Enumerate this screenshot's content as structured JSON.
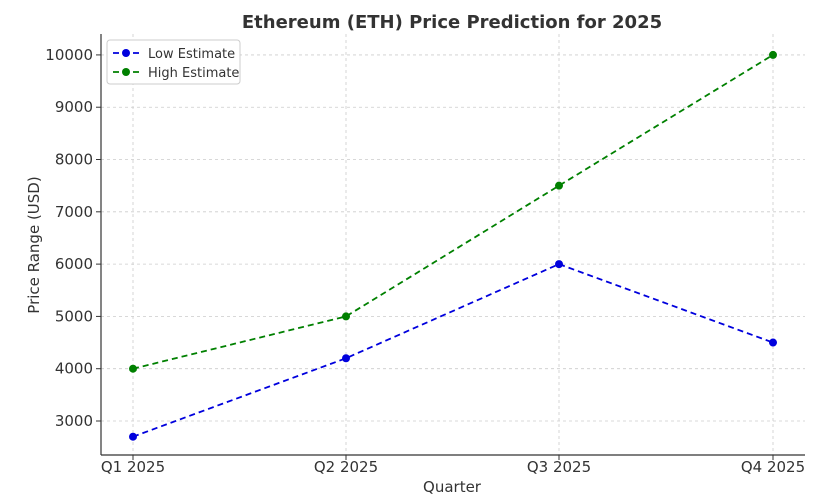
{
  "chart_data": {
    "type": "line",
    "title": "Ethereum (ETH) Price Prediction for 2025",
    "xlabel": "Quarter",
    "ylabel": "Price Range (USD)",
    "categories": [
      "Q1 2025",
      "Q2 2025",
      "Q3 2025",
      "Q4 2025"
    ],
    "ylim": [
      2350,
      10400
    ],
    "yticks": [
      3000,
      4000,
      5000,
      6000,
      7000,
      8000,
      9000,
      10000
    ],
    "grid": true,
    "legend_position": "top-left",
    "series": [
      {
        "name": "Low Estimate",
        "values": [
          2700,
          4200,
          6000,
          4500
        ],
        "color": "#0000dd",
        "line_style": "dashed",
        "marker": "circle"
      },
      {
        "name": "High Estimate",
        "values": [
          4000,
          5000,
          7500,
          10000
        ],
        "color": "#008000",
        "line_style": "dashed",
        "marker": "circle"
      }
    ]
  }
}
